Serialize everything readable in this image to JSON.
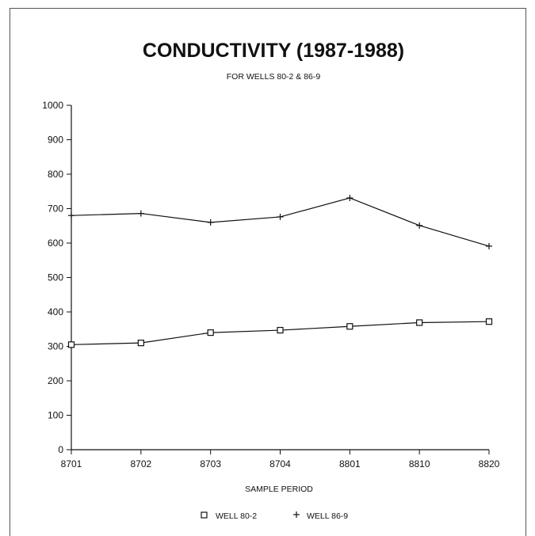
{
  "chart_data": {
    "type": "line",
    "title": "CONDUCTIVITY (1987-1988)",
    "subtitle": "FOR WELLS 80-2 & 86-9",
    "xlabel": "SAMPLE PERIOD",
    "ylabel": "",
    "categories": [
      "8701",
      "8702",
      "8703",
      "8704",
      "8801",
      "8810",
      "8820"
    ],
    "ylim": [
      0,
      1000
    ],
    "yticks": [
      "0",
      "100",
      "200",
      "300",
      "400",
      "500",
      "600",
      "700",
      "800",
      "900",
      "1000"
    ],
    "grid": false,
    "legend_position": "bottom",
    "series": [
      {
        "name": "WELL 80-2",
        "marker": "square",
        "values": [
          305,
          310,
          340,
          347,
          358,
          369,
          372
        ]
      },
      {
        "name": "WELL 86-9",
        "marker": "plus",
        "values": [
          680,
          686,
          660,
          676,
          731,
          651,
          591
        ]
      }
    ],
    "colors": {
      "ink": "#111111"
    }
  }
}
